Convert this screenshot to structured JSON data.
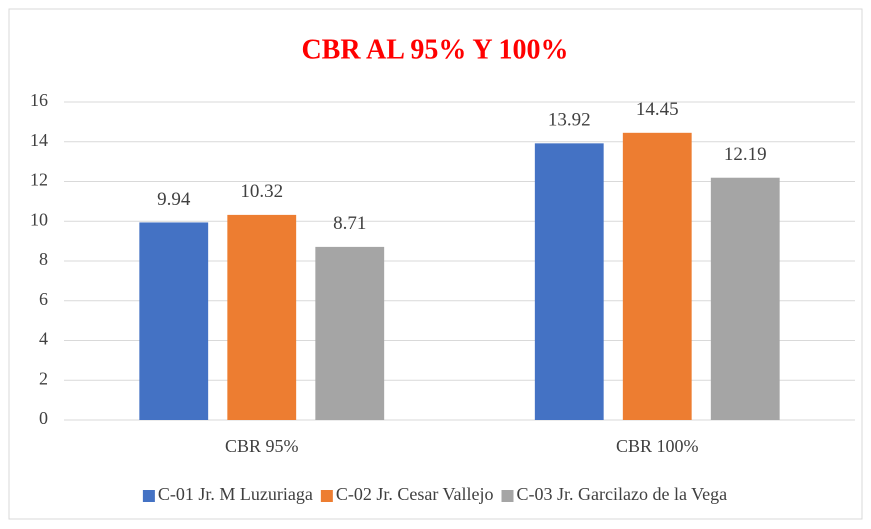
{
  "chart_data": {
    "type": "bar",
    "title": "CBR AL 95% Y 100%",
    "categories": [
      "CBR 95%",
      "CBR 100%"
    ],
    "series": [
      {
        "name": "C-01 Jr. M Luzuriaga",
        "color": "#4472c4",
        "values": [
          9.94,
          13.92
        ]
      },
      {
        "name": "C-02 Jr. Cesar Vallejo",
        "color": "#ed7d31",
        "values": [
          10.32,
          14.45
        ]
      },
      {
        "name": "C-03 Jr. Garcilazo de la Vega",
        "color": "#a5a5a5",
        "values": [
          8.71,
          12.19
        ]
      }
    ],
    "ylim": [
      0,
      16
    ],
    "yticks": [
      0,
      2,
      4,
      6,
      8,
      10,
      12,
      14,
      16
    ],
    "grid": true,
    "legend": "bottom"
  }
}
